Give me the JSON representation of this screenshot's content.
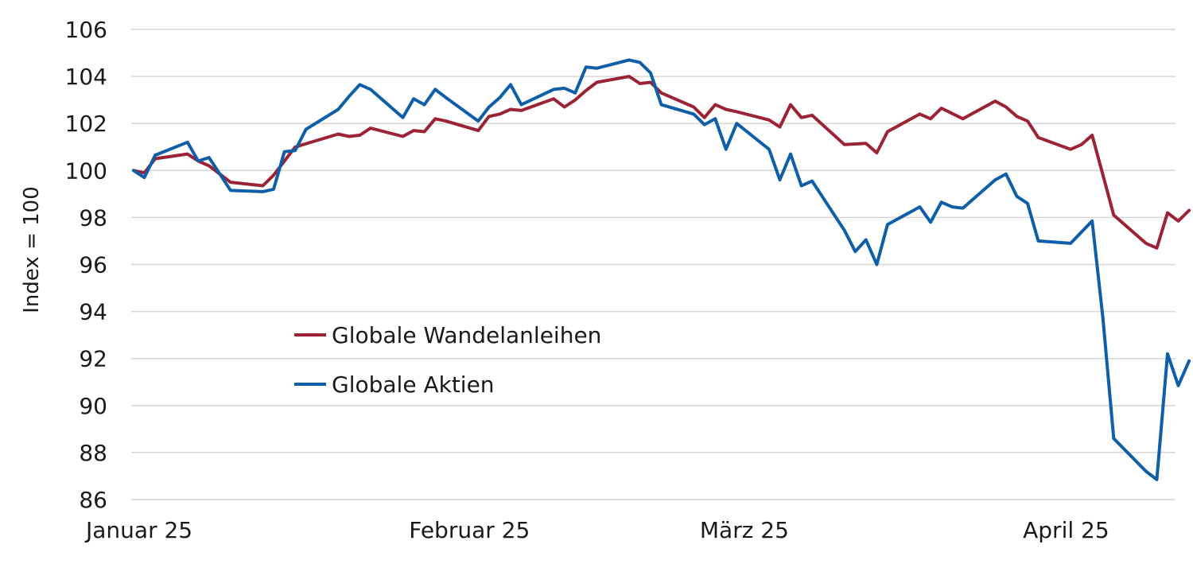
{
  "chart_data": {
    "type": "line",
    "ylabel": "Index = 100",
    "ylim": [
      86,
      106
    ],
    "yticks": [
      86,
      88,
      90,
      92,
      94,
      96,
      98,
      100,
      102,
      104,
      106
    ],
    "xlim": [
      0,
      96
    ],
    "xtick_labels": [
      {
        "label": "Januar 25",
        "x": 0
      },
      {
        "label": "Februar 25",
        "x": 30
      },
      {
        "label": "März 25",
        "x": 57
      },
      {
        "label": "April 25",
        "x": 87
      }
    ],
    "grid": true,
    "legend_position": "center-left",
    "series": [
      {
        "name": "Globale Wandelanleihen",
        "color": "#9b2335",
        "points": [
          [
            0,
            100.0
          ],
          [
            1,
            99.9
          ],
          [
            2,
            100.5
          ],
          [
            5,
            100.7
          ],
          [
            6,
            100.4
          ],
          [
            7,
            100.2
          ],
          [
            9,
            99.5
          ],
          [
            12,
            99.35
          ],
          [
            13,
            99.8
          ],
          [
            14,
            100.4
          ],
          [
            15,
            101.0
          ],
          [
            19,
            101.55
          ],
          [
            20,
            101.45
          ],
          [
            21,
            101.5
          ],
          [
            22,
            101.8
          ],
          [
            25,
            101.45
          ],
          [
            26,
            101.7
          ],
          [
            27,
            101.65
          ],
          [
            28,
            102.2
          ],
          [
            29,
            102.1
          ],
          [
            32,
            101.7
          ],
          [
            33,
            102.3
          ],
          [
            34,
            102.4
          ],
          [
            35,
            102.6
          ],
          [
            36,
            102.55
          ],
          [
            39,
            103.05
          ],
          [
            40,
            102.7
          ],
          [
            41,
            103.0
          ],
          [
            42,
            103.4
          ],
          [
            43,
            103.75
          ],
          [
            46,
            104.0
          ],
          [
            47,
            103.7
          ],
          [
            48,
            103.75
          ],
          [
            49,
            103.3
          ],
          [
            52,
            102.7
          ],
          [
            53,
            102.25
          ],
          [
            54,
            102.8
          ],
          [
            55,
            102.6
          ],
          [
            56,
            102.5
          ],
          [
            59,
            102.15
          ],
          [
            60,
            101.85
          ],
          [
            61,
            102.8
          ],
          [
            62,
            102.25
          ],
          [
            63,
            102.35
          ],
          [
            66,
            101.1
          ],
          [
            68,
            101.15
          ],
          [
            69,
            100.75
          ],
          [
            70,
            101.65
          ],
          [
            73,
            102.4
          ],
          [
            74,
            102.2
          ],
          [
            75,
            102.65
          ],
          [
            77,
            102.2
          ],
          [
            80,
            102.95
          ],
          [
            81,
            102.7
          ],
          [
            82,
            102.3
          ],
          [
            83,
            102.1
          ],
          [
            84,
            101.4
          ],
          [
            87,
            100.9
          ],
          [
            88,
            101.1
          ],
          [
            89,
            101.5
          ],
          [
            90,
            99.8
          ],
          [
            91,
            98.1
          ],
          [
            94,
            96.9
          ],
          [
            95,
            96.7
          ],
          [
            96,
            98.2
          ],
          [
            97,
            97.85
          ],
          [
            98,
            98.3
          ]
        ]
      },
      {
        "name": "Globale Aktien",
        "color": "#0f5ea8",
        "points": [
          [
            0,
            100.0
          ],
          [
            1,
            99.7
          ],
          [
            2,
            100.65
          ],
          [
            5,
            101.2
          ],
          [
            6,
            100.4
          ],
          [
            7,
            100.55
          ],
          [
            9,
            99.15
          ],
          [
            12,
            99.1
          ],
          [
            13,
            99.2
          ],
          [
            14,
            100.8
          ],
          [
            15,
            100.85
          ],
          [
            16,
            101.75
          ],
          [
            19,
            102.6
          ],
          [
            20,
            103.15
          ],
          [
            21,
            103.65
          ],
          [
            22,
            103.45
          ],
          [
            25,
            102.25
          ],
          [
            26,
            103.05
          ],
          [
            27,
            102.8
          ],
          [
            28,
            103.45
          ],
          [
            29,
            103.1
          ],
          [
            32,
            102.1
          ],
          [
            33,
            102.7
          ],
          [
            34,
            103.1
          ],
          [
            35,
            103.65
          ],
          [
            36,
            102.8
          ],
          [
            39,
            103.45
          ],
          [
            40,
            103.5
          ],
          [
            41,
            103.3
          ],
          [
            42,
            104.4
          ],
          [
            43,
            104.35
          ],
          [
            46,
            104.7
          ],
          [
            47,
            104.6
          ],
          [
            48,
            104.15
          ],
          [
            49,
            102.8
          ],
          [
            52,
            102.4
          ],
          [
            53,
            101.95
          ],
          [
            54,
            102.2
          ],
          [
            55,
            100.9
          ],
          [
            56,
            102.0
          ],
          [
            59,
            100.9
          ],
          [
            60,
            99.6
          ],
          [
            61,
            100.7
          ],
          [
            62,
            99.35
          ],
          [
            63,
            99.55
          ],
          [
            66,
            97.45
          ],
          [
            67,
            96.55
          ],
          [
            68,
            97.05
          ],
          [
            69,
            96.0
          ],
          [
            70,
            97.7
          ],
          [
            73,
            98.45
          ],
          [
            74,
            97.8
          ],
          [
            75,
            98.65
          ],
          [
            76,
            98.45
          ],
          [
            77,
            98.4
          ],
          [
            80,
            99.6
          ],
          [
            81,
            99.85
          ],
          [
            82,
            98.9
          ],
          [
            83,
            98.6
          ],
          [
            84,
            97.0
          ],
          [
            87,
            96.9
          ],
          [
            89,
            97.85
          ],
          [
            90,
            93.7
          ],
          [
            91,
            88.6
          ],
          [
            94,
            87.2
          ],
          [
            95,
            86.85
          ],
          [
            96,
            92.2
          ],
          [
            97,
            90.85
          ],
          [
            98,
            91.9
          ]
        ]
      }
    ]
  }
}
